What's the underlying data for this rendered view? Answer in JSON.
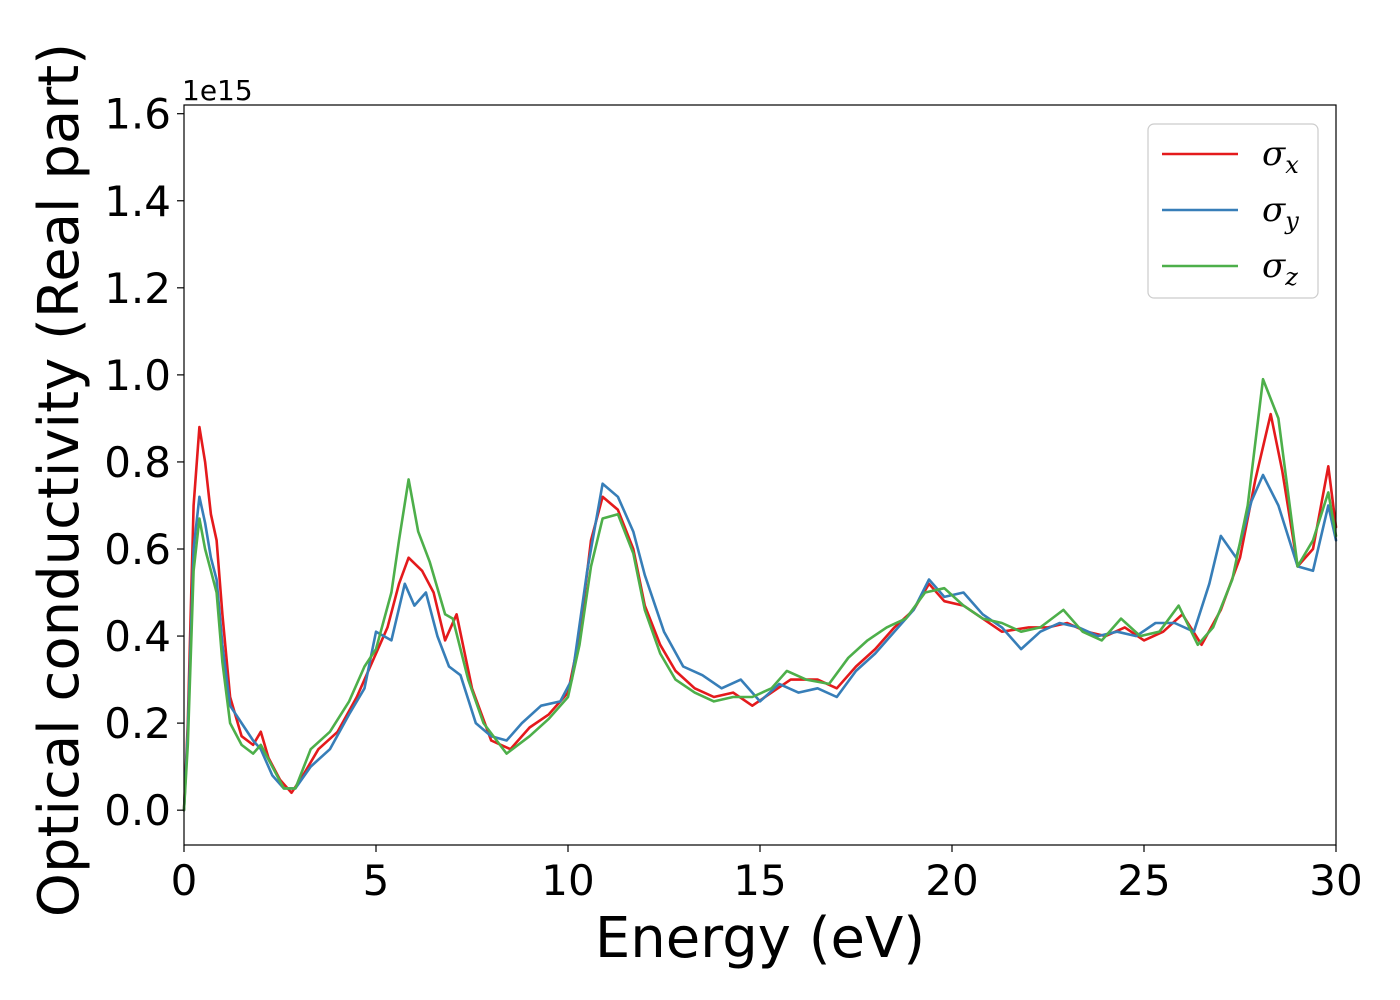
{
  "chart_data": {
    "type": "line",
    "title": "",
    "xlabel": "Energy (eV)",
    "ylabel": "Optical conductivity (Real part)",
    "y_offset_label": "1e15",
    "xlim": [
      0,
      30
    ],
    "ylim": [
      -0.08,
      1.62
    ],
    "xticks": [
      0,
      5,
      10,
      15,
      20,
      25,
      30
    ],
    "xtick_labels": [
      "0",
      "5",
      "10",
      "15",
      "20",
      "25",
      "30"
    ],
    "yticks": [
      0.0,
      0.2,
      0.4,
      0.6,
      0.8,
      1.0,
      1.2,
      1.4,
      1.6
    ],
    "ytick_labels": [
      "0.0",
      "0.2",
      "0.4",
      "0.6",
      "0.8",
      "1.0",
      "1.2",
      "1.4",
      "1.6"
    ],
    "grid": false,
    "legend_position": "top-right",
    "series": [
      {
        "name": "σx",
        "symbol": "σ",
        "subscript": "x",
        "color": "#e41a1c",
        "points": [
          [
            0,
            0.0
          ],
          [
            0.1,
            0.2
          ],
          [
            0.25,
            0.7
          ],
          [
            0.4,
            0.88
          ],
          [
            0.55,
            0.8
          ],
          [
            0.7,
            0.68
          ],
          [
            0.85,
            0.62
          ],
          [
            1.0,
            0.45
          ],
          [
            1.2,
            0.26
          ],
          [
            1.5,
            0.17
          ],
          [
            1.8,
            0.15
          ],
          [
            2.0,
            0.18
          ],
          [
            2.2,
            0.12
          ],
          [
            2.5,
            0.07
          ],
          [
            2.8,
            0.04
          ],
          [
            3.1,
            0.08
          ],
          [
            3.5,
            0.14
          ],
          [
            4.0,
            0.18
          ],
          [
            4.5,
            0.26
          ],
          [
            5.0,
            0.36
          ],
          [
            5.3,
            0.42
          ],
          [
            5.6,
            0.52
          ],
          [
            5.85,
            0.58
          ],
          [
            6.2,
            0.55
          ],
          [
            6.5,
            0.5
          ],
          [
            6.8,
            0.39
          ],
          [
            7.1,
            0.45
          ],
          [
            7.5,
            0.28
          ],
          [
            8.0,
            0.16
          ],
          [
            8.5,
            0.14
          ],
          [
            9.0,
            0.19
          ],
          [
            9.5,
            0.22
          ],
          [
            10.0,
            0.27
          ],
          [
            10.3,
            0.4
          ],
          [
            10.6,
            0.62
          ],
          [
            10.9,
            0.72
          ],
          [
            11.3,
            0.69
          ],
          [
            11.7,
            0.6
          ],
          [
            12.0,
            0.47
          ],
          [
            12.4,
            0.38
          ],
          [
            12.8,
            0.32
          ],
          [
            13.3,
            0.28
          ],
          [
            13.8,
            0.26
          ],
          [
            14.3,
            0.27
          ],
          [
            14.8,
            0.24
          ],
          [
            15.3,
            0.27
          ],
          [
            15.8,
            0.3
          ],
          [
            16.5,
            0.3
          ],
          [
            17.0,
            0.28
          ],
          [
            17.5,
            0.33
          ],
          [
            18.0,
            0.37
          ],
          [
            18.5,
            0.42
          ],
          [
            19.0,
            0.46
          ],
          [
            19.4,
            0.52
          ],
          [
            19.8,
            0.48
          ],
          [
            20.3,
            0.47
          ],
          [
            20.8,
            0.44
          ],
          [
            21.3,
            0.41
          ],
          [
            22.0,
            0.42
          ],
          [
            22.5,
            0.42
          ],
          [
            23.0,
            0.43
          ],
          [
            23.5,
            0.41
          ],
          [
            24.0,
            0.4
          ],
          [
            24.5,
            0.42
          ],
          [
            25.0,
            0.39
          ],
          [
            25.5,
            0.41
          ],
          [
            26.0,
            0.45
          ],
          [
            26.5,
            0.38
          ],
          [
            27.0,
            0.46
          ],
          [
            27.5,
            0.58
          ],
          [
            27.9,
            0.76
          ],
          [
            28.3,
            0.91
          ],
          [
            28.6,
            0.78
          ],
          [
            29.0,
            0.56
          ],
          [
            29.4,
            0.6
          ],
          [
            29.8,
            0.79
          ],
          [
            30.0,
            0.65
          ]
        ]
      },
      {
        "name": "σy",
        "symbol": "σ",
        "subscript": "y",
        "color": "#377eb8",
        "points": [
          [
            0,
            0.0
          ],
          [
            0.1,
            0.18
          ],
          [
            0.25,
            0.6
          ],
          [
            0.4,
            0.72
          ],
          [
            0.55,
            0.66
          ],
          [
            0.7,
            0.58
          ],
          [
            0.85,
            0.53
          ],
          [
            1.0,
            0.38
          ],
          [
            1.2,
            0.24
          ],
          [
            1.5,
            0.2
          ],
          [
            1.8,
            0.16
          ],
          [
            2.0,
            0.14
          ],
          [
            2.3,
            0.08
          ],
          [
            2.6,
            0.05
          ],
          [
            2.9,
            0.05
          ],
          [
            3.3,
            0.1
          ],
          [
            3.8,
            0.14
          ],
          [
            4.3,
            0.22
          ],
          [
            4.7,
            0.28
          ],
          [
            5.0,
            0.41
          ],
          [
            5.4,
            0.39
          ],
          [
            5.75,
            0.52
          ],
          [
            6.0,
            0.47
          ],
          [
            6.3,
            0.5
          ],
          [
            6.6,
            0.4
          ],
          [
            6.9,
            0.33
          ],
          [
            7.2,
            0.31
          ],
          [
            7.6,
            0.2
          ],
          [
            8.0,
            0.17
          ],
          [
            8.4,
            0.16
          ],
          [
            8.8,
            0.2
          ],
          [
            9.3,
            0.24
          ],
          [
            9.8,
            0.25
          ],
          [
            10.1,
            0.3
          ],
          [
            10.5,
            0.55
          ],
          [
            10.9,
            0.75
          ],
          [
            11.3,
            0.72
          ],
          [
            11.7,
            0.64
          ],
          [
            12.0,
            0.54
          ],
          [
            12.5,
            0.41
          ],
          [
            13.0,
            0.33
          ],
          [
            13.5,
            0.31
          ],
          [
            14.0,
            0.28
          ],
          [
            14.5,
            0.3
          ],
          [
            15.0,
            0.25
          ],
          [
            15.5,
            0.29
          ],
          [
            16.0,
            0.27
          ],
          [
            16.5,
            0.28
          ],
          [
            17.0,
            0.26
          ],
          [
            17.5,
            0.32
          ],
          [
            18.0,
            0.36
          ],
          [
            18.5,
            0.41
          ],
          [
            19.0,
            0.46
          ],
          [
            19.4,
            0.53
          ],
          [
            19.8,
            0.49
          ],
          [
            20.3,
            0.5
          ],
          [
            20.8,
            0.45
          ],
          [
            21.3,
            0.42
          ],
          [
            21.8,
            0.37
          ],
          [
            22.3,
            0.41
          ],
          [
            22.8,
            0.43
          ],
          [
            23.3,
            0.42
          ],
          [
            23.8,
            0.4
          ],
          [
            24.3,
            0.41
          ],
          [
            24.8,
            0.4
          ],
          [
            25.3,
            0.43
          ],
          [
            25.8,
            0.43
          ],
          [
            26.3,
            0.41
          ],
          [
            26.7,
            0.52
          ],
          [
            27.0,
            0.63
          ],
          [
            27.4,
            0.58
          ],
          [
            27.8,
            0.71
          ],
          [
            28.1,
            0.77
          ],
          [
            28.5,
            0.7
          ],
          [
            29.0,
            0.56
          ],
          [
            29.4,
            0.55
          ],
          [
            29.8,
            0.7
          ],
          [
            30.0,
            0.62
          ]
        ]
      },
      {
        "name": "σz",
        "symbol": "σ",
        "subscript": "z",
        "color": "#4daf4a",
        "points": [
          [
            0,
            0.0
          ],
          [
            0.1,
            0.15
          ],
          [
            0.25,
            0.55
          ],
          [
            0.4,
            0.67
          ],
          [
            0.55,
            0.6
          ],
          [
            0.7,
            0.55
          ],
          [
            0.85,
            0.5
          ],
          [
            1.0,
            0.34
          ],
          [
            1.2,
            0.2
          ],
          [
            1.5,
            0.15
          ],
          [
            1.8,
            0.13
          ],
          [
            2.0,
            0.15
          ],
          [
            2.3,
            0.1
          ],
          [
            2.6,
            0.05
          ],
          [
            2.9,
            0.05
          ],
          [
            3.3,
            0.14
          ],
          [
            3.8,
            0.18
          ],
          [
            4.3,
            0.25
          ],
          [
            4.7,
            0.33
          ],
          [
            5.0,
            0.37
          ],
          [
            5.4,
            0.5
          ],
          [
            5.6,
            0.62
          ],
          [
            5.85,
            0.76
          ],
          [
            6.1,
            0.64
          ],
          [
            6.4,
            0.57
          ],
          [
            6.8,
            0.45
          ],
          [
            7.0,
            0.44
          ],
          [
            7.4,
            0.3
          ],
          [
            7.8,
            0.2
          ],
          [
            8.4,
            0.13
          ],
          [
            9.0,
            0.17
          ],
          [
            9.5,
            0.21
          ],
          [
            10.0,
            0.26
          ],
          [
            10.3,
            0.38
          ],
          [
            10.6,
            0.56
          ],
          [
            10.9,
            0.67
          ],
          [
            11.3,
            0.68
          ],
          [
            11.7,
            0.59
          ],
          [
            12.0,
            0.46
          ],
          [
            12.4,
            0.36
          ],
          [
            12.8,
            0.3
          ],
          [
            13.3,
            0.27
          ],
          [
            13.8,
            0.25
          ],
          [
            14.3,
            0.26
          ],
          [
            14.8,
            0.26
          ],
          [
            15.3,
            0.28
          ],
          [
            15.7,
            0.32
          ],
          [
            16.2,
            0.3
          ],
          [
            16.8,
            0.29
          ],
          [
            17.3,
            0.35
          ],
          [
            17.8,
            0.39
          ],
          [
            18.3,
            0.42
          ],
          [
            18.8,
            0.44
          ],
          [
            19.3,
            0.5
          ],
          [
            19.8,
            0.51
          ],
          [
            20.3,
            0.47
          ],
          [
            20.8,
            0.44
          ],
          [
            21.3,
            0.43
          ],
          [
            21.8,
            0.41
          ],
          [
            22.3,
            0.42
          ],
          [
            22.9,
            0.46
          ],
          [
            23.4,
            0.41
          ],
          [
            23.9,
            0.39
          ],
          [
            24.4,
            0.44
          ],
          [
            24.9,
            0.4
          ],
          [
            25.4,
            0.41
          ],
          [
            25.9,
            0.47
          ],
          [
            26.4,
            0.38
          ],
          [
            26.8,
            0.42
          ],
          [
            27.3,
            0.53
          ],
          [
            27.7,
            0.7
          ],
          [
            28.1,
            0.99
          ],
          [
            28.5,
            0.9
          ],
          [
            29.0,
            0.56
          ],
          [
            29.4,
            0.62
          ],
          [
            29.8,
            0.73
          ],
          [
            30.0,
            0.63
          ]
        ]
      }
    ]
  }
}
